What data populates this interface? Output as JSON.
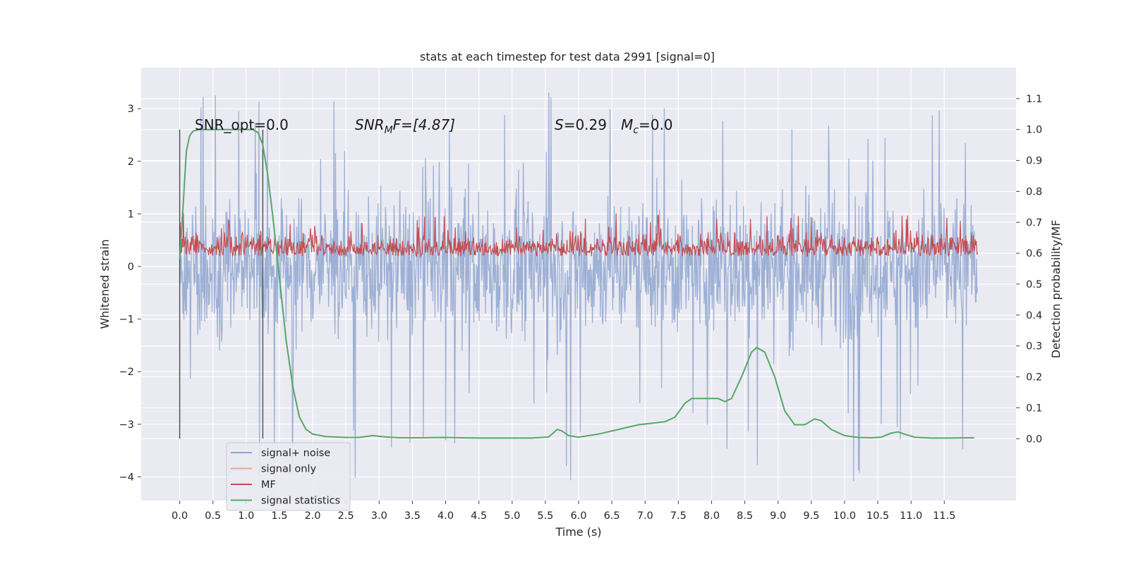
{
  "chart_data": {
    "type": "line",
    "title": "stats at each timestep for test data 2991 [signal=0]",
    "xlabel": "Time (s)",
    "ylabel": "Whitened strain",
    "ylabel_right": "Detection probability/MF",
    "xlim": [
      -0.58,
      12.58
    ],
    "ylim": [
      -4.45,
      3.78
    ],
    "ylim_right": [
      -0.2,
      1.2
    ],
    "x_ticks": [
      0.0,
      0.5,
      1.0,
      1.5,
      2.0,
      2.5,
      3.0,
      3.5,
      4.0,
      4.5,
      5.0,
      5.5,
      6.0,
      6.5,
      7.0,
      7.5,
      8.0,
      8.5,
      9.0,
      9.5,
      10.0,
      10.5,
      11.0,
      11.5
    ],
    "x_tick_labels": [
      "0.0",
      "0.5",
      "1.0",
      "1.5",
      "2.0",
      "2.5",
      "3.0",
      "3.5",
      "4.0",
      "4.5",
      "5.0",
      "5.5",
      "6.0",
      "6.5",
      "7.0",
      "7.5",
      "8.0",
      "8.5",
      "9.0",
      "9.5",
      "10.0",
      "10.5",
      "11.0",
      "11.5"
    ],
    "y_ticks": [
      -4,
      -3,
      -2,
      -1,
      0,
      1,
      2,
      3
    ],
    "y_tick_labels": [
      "−4",
      "−3",
      "−2",
      "−1",
      "0",
      "1",
      "2",
      "3"
    ],
    "y2_ticks": [
      0.0,
      0.1,
      0.2,
      0.3,
      0.4,
      0.5,
      0.6,
      0.7,
      0.8,
      0.9,
      1.0,
      1.1
    ],
    "y2_tick_labels": [
      "0.0",
      "0.1",
      "0.2",
      "0.3",
      "0.4",
      "0.5",
      "0.6",
      "0.7",
      "0.8",
      "0.9",
      "1.0",
      "1.1"
    ],
    "grid": true,
    "legend_position": "lower-left",
    "annotations": {
      "snr_opt": "SNR_opt=0.0",
      "snr_mf_symbol": "SNR",
      "snr_mf_sub": "M",
      "snr_mf_rest": "F=[4.87]",
      "s_symbol": "S",
      "s_rest": "=0.29",
      "mc_symbol": "M",
      "mc_sub": "c",
      "mc_rest": "=0.0"
    },
    "vertical_markers": [
      0.0,
      1.25
    ],
    "series": [
      {
        "name": "signal+ noise",
        "axis": "left",
        "color": "#8fa6d0",
        "style": "dense-noise",
        "x_range": [
          0.0,
          12.0
        ],
        "envelope_typical": [
          -1.6,
          1.6
        ],
        "spike_extremes": [
          -4.1,
          3.4
        ]
      },
      {
        "name": "signal only",
        "axis": "left",
        "color": "#e8a688",
        "x": [],
        "y": []
      },
      {
        "name": "MF",
        "axis": "right",
        "color": "#c44e52",
        "style": "dense-noise",
        "x_range": [
          0.0,
          12.0
        ],
        "baseline": 0.6,
        "band_typical": [
          0.59,
          0.68
        ],
        "peak_max": 0.73
      },
      {
        "name": "signal statistics",
        "axis": "right",
        "color": "#55a868",
        "x": [
          0.0,
          0.05,
          0.1,
          0.15,
          0.2,
          0.3,
          0.5,
          0.8,
          1.0,
          1.1,
          1.18,
          1.25,
          1.32,
          1.4,
          1.5,
          1.6,
          1.7,
          1.8,
          1.9,
          2.0,
          2.2,
          2.5,
          2.7,
          2.9,
          3.1,
          3.3,
          3.6,
          4.0,
          4.5,
          5.0,
          5.3,
          5.55,
          5.68,
          5.75,
          5.85,
          6.0,
          6.3,
          6.6,
          6.9,
          7.1,
          7.3,
          7.45,
          7.6,
          7.7,
          7.9,
          8.1,
          8.2,
          8.3,
          8.45,
          8.6,
          8.68,
          8.8,
          8.95,
          9.1,
          9.25,
          9.4,
          9.55,
          9.65,
          9.8,
          10.0,
          10.2,
          10.4,
          10.55,
          10.7,
          10.8,
          10.9,
          11.05,
          11.3,
          11.6,
          11.8,
          11.95
        ],
        "y": [
          0.58,
          0.75,
          0.93,
          0.98,
          0.995,
          1.0,
          1.0,
          1.0,
          1.0,
          1.0,
          0.99,
          0.95,
          0.86,
          0.72,
          0.52,
          0.32,
          0.17,
          0.07,
          0.03,
          0.015,
          0.007,
          0.004,
          0.004,
          0.01,
          0.006,
          0.003,
          0.003,
          0.004,
          0.002,
          0.002,
          0.002,
          0.006,
          0.03,
          0.025,
          0.01,
          0.005,
          0.015,
          0.03,
          0.045,
          0.05,
          0.055,
          0.07,
          0.115,
          0.13,
          0.13,
          0.13,
          0.12,
          0.13,
          0.2,
          0.28,
          0.295,
          0.28,
          0.2,
          0.09,
          0.045,
          0.045,
          0.064,
          0.058,
          0.03,
          0.01,
          0.004,
          0.003,
          0.005,
          0.018,
          0.022,
          0.015,
          0.005,
          0.002,
          0.002,
          0.003,
          0.003
        ]
      }
    ]
  }
}
